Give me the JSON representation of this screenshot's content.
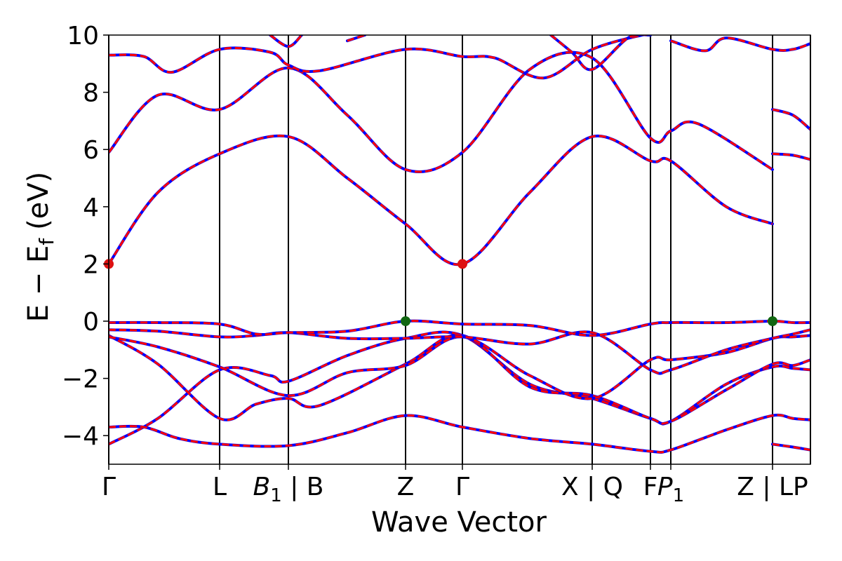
{
  "chart_data": {
    "type": "line",
    "xlabel": "Wave Vector",
    "ylabel_parts": {
      "main": "E − E",
      "sub": "f",
      "unit": "(eV)"
    },
    "ylim": [
      -5,
      10
    ],
    "yticks": [
      -4,
      -2,
      0,
      2,
      4,
      6,
      8,
      10
    ],
    "ytick_labels": [
      "−4",
      "−2",
      "0",
      "2",
      "4",
      "6",
      "8",
      "10"
    ],
    "x_range": [
      0,
      1
    ],
    "kpoints": [
      {
        "pos": 0.0,
        "label": "Γ",
        "sub": ""
      },
      {
        "pos": 0.158,
        "label": "L",
        "sub": ""
      },
      {
        "pos": 0.256,
        "label": "B",
        "sub": "1",
        "suffix": " | B"
      },
      {
        "pos": 0.423,
        "label": "Z",
        "sub": ""
      },
      {
        "pos": 0.504,
        "label": "Γ",
        "sub": ""
      },
      {
        "pos": 0.689,
        "label": "X | Q",
        "sub": ""
      },
      {
        "pos": 0.772,
        "label": "F",
        "sub": ""
      },
      {
        "pos": 0.801,
        "label": "P",
        "sub": "1"
      },
      {
        "pos": 0.946,
        "label": "Z | LP",
        "sub": ""
      },
      {
        "pos": 1.0,
        "label": "",
        "sub": ""
      }
    ],
    "line_colors": {
      "primary": "#ff0000",
      "overlay": "#0000ff"
    },
    "bands": [
      [
        [
          0,
          -4.3
        ],
        [
          0.07,
          -3.4
        ],
        [
          0.158,
          -1.7
        ],
        [
          0.23,
          -1.9
        ],
        [
          0.256,
          -2.1
        ],
        [
          0.34,
          -1.2
        ],
        [
          0.423,
          -0.6
        ],
        [
          0.504,
          -0.5
        ],
        [
          0.6,
          -2.2
        ],
        [
          0.689,
          -2.7
        ],
        [
          0.772,
          -3.4
        ],
        [
          0.801,
          -3.5
        ],
        [
          0.88,
          -2.2
        ],
        [
          0.946,
          -1.6
        ],
        [
          0.975,
          -1.65
        ],
        [
          1.0,
          -1.7
        ]
      ],
      [
        [
          0,
          -3.7
        ],
        [
          0.05,
          -3.7
        ],
        [
          0.1,
          -4.1
        ],
        [
          0.158,
          -4.3
        ],
        [
          0.256,
          -4.35
        ],
        [
          0.34,
          -3.9
        ],
        [
          0.423,
          -3.3
        ],
        [
          0.504,
          -3.7
        ],
        [
          0.6,
          -4.1
        ],
        [
          0.689,
          -4.3
        ],
        [
          0.772,
          -4.55
        ],
        [
          0.801,
          -4.5
        ],
        [
          0.88,
          -3.8
        ],
        [
          0.946,
          -3.3
        ],
        [
          0.975,
          -3.4
        ],
        [
          1.0,
          -3.45
        ]
      ],
      [
        [
          0,
          -0.5
        ],
        [
          0.07,
          -1.5
        ],
        [
          0.158,
          -3.4
        ],
        [
          0.21,
          -2.9
        ],
        [
          0.256,
          -2.7
        ],
        [
          0.3,
          -2.95
        ],
        [
          0.423,
          -1.5
        ],
        [
          0.504,
          -0.5
        ],
        [
          0.6,
          -2.3
        ],
        [
          0.689,
          -2.6
        ],
        [
          0.772,
          -3.4
        ],
        [
          0.801,
          -3.5
        ],
        [
          0.88,
          -2.4
        ],
        [
          0.946,
          -1.5
        ],
        [
          0.975,
          -1.55
        ],
        [
          1.0,
          -1.35
        ]
      ],
      [
        [
          0,
          -0.55
        ],
        [
          0.07,
          -0.9
        ],
        [
          0.158,
          -1.6
        ],
        [
          0.256,
          -2.6
        ],
        [
          0.34,
          -1.8
        ],
        [
          0.423,
          -1.55
        ],
        [
          0.504,
          -0.55
        ],
        [
          0.6,
          -1.9
        ],
        [
          0.689,
          -2.7
        ],
        [
          0.772,
          -1.35
        ],
        [
          0.801,
          -1.35
        ],
        [
          0.88,
          -1.1
        ],
        [
          0.946,
          -0.6
        ],
        [
          0.975,
          -0.55
        ],
        [
          1.0,
          -0.5
        ]
      ],
      [
        [
          0,
          -0.3
        ],
        [
          0.07,
          -0.35
        ],
        [
          0.158,
          -0.55
        ],
        [
          0.21,
          -0.5
        ],
        [
          0.256,
          -0.4
        ],
        [
          0.34,
          -0.6
        ],
        [
          0.423,
          -0.6
        ],
        [
          0.504,
          -0.55
        ],
        [
          0.6,
          -0.8
        ],
        [
          0.689,
          -0.4
        ],
        [
          0.772,
          -1.7
        ],
        [
          0.801,
          -1.7
        ],
        [
          0.88,
          -1.0
        ],
        [
          0.946,
          -0.6
        ],
        [
          0.975,
          -0.45
        ],
        [
          1.0,
          -0.3
        ]
      ],
      [
        [
          0,
          -0.05
        ],
        [
          0.07,
          -0.05
        ],
        [
          0.158,
          -0.1
        ],
        [
          0.21,
          -0.45
        ],
        [
          0.256,
          -0.4
        ],
        [
          0.34,
          -0.35
        ],
        [
          0.423,
          0.0
        ],
        [
          0.504,
          -0.1
        ],
        [
          0.6,
          -0.15
        ],
        [
          0.689,
          -0.5
        ],
        [
          0.772,
          -0.1
        ],
        [
          0.801,
          -0.05
        ],
        [
          0.88,
          -0.05
        ],
        [
          0.946,
          0.0
        ],
        [
          0.975,
          -0.05
        ],
        [
          1.0,
          -0.05
        ]
      ],
      [
        [
          0,
          2.0
        ],
        [
          0.07,
          4.5
        ],
        [
          0.158,
          5.85
        ],
        [
          0.256,
          6.45
        ],
        [
          0.34,
          5.0
        ],
        [
          0.423,
          3.4
        ],
        [
          0.504,
          2.0
        ],
        [
          0.6,
          4.5
        ],
        [
          0.689,
          6.45
        ],
        [
          0.772,
          5.6
        ],
        [
          0.801,
          5.6
        ],
        [
          0.88,
          4.0
        ],
        [
          0.946,
          3.4
        ]
      ],
      [
        [
          0,
          5.9
        ],
        [
          0.07,
          7.9
        ],
        [
          0.158,
          7.4
        ],
        [
          0.256,
          8.85
        ],
        [
          0.34,
          7.2
        ],
        [
          0.423,
          5.3
        ],
        [
          0.504,
          5.9
        ],
        [
          0.6,
          8.8
        ],
        [
          0.689,
          9.2
        ],
        [
          0.772,
          6.4
        ],
        [
          0.801,
          6.65
        ],
        [
          0.84,
          6.9
        ],
        [
          0.946,
          5.3
        ]
      ],
      [
        [
          0,
          9.3
        ],
        [
          0.05,
          9.25
        ],
        [
          0.09,
          8.7
        ],
        [
          0.158,
          9.5
        ],
        [
          0.23,
          9.4
        ],
        [
          0.256,
          8.95
        ],
        [
          0.3,
          8.75
        ],
        [
          0.423,
          9.5
        ],
        [
          0.504,
          9.25
        ],
        [
          0.55,
          9.2
        ],
        [
          0.62,
          8.5
        ],
        [
          0.689,
          9.5
        ],
        [
          0.76,
          10.0
        ],
        [
          0.772,
          10.0
        ]
      ],
      [
        [
          0.23,
          10.0
        ],
        [
          0.256,
          9.6
        ],
        [
          0.275,
          10.0
        ]
      ],
      [
        [
          0.34,
          9.8
        ],
        [
          0.365,
          10.0
        ]
      ],
      [
        [
          0.63,
          10.0
        ],
        [
          0.66,
          9.4
        ],
        [
          0.689,
          8.8
        ],
        [
          0.74,
          9.9
        ],
        [
          0.772,
          10.0
        ]
      ],
      [
        [
          0.801,
          9.8
        ],
        [
          0.85,
          9.45
        ],
        [
          0.88,
          9.9
        ],
        [
          0.946,
          9.5
        ],
        [
          0.975,
          9.5
        ],
        [
          1.0,
          9.7
        ]
      ],
      [
        [
          0.946,
          7.4
        ],
        [
          0.975,
          7.2
        ],
        [
          1.0,
          6.7
        ]
      ],
      [
        [
          0.946,
          5.85
        ],
        [
          0.975,
          5.8
        ],
        [
          1.0,
          5.65
        ]
      ],
      [
        [
          0.946,
          -4.3
        ],
        [
          0.975,
          -4.4
        ],
        [
          1.0,
          -4.5
        ]
      ]
    ],
    "markers": [
      {
        "x": 0.0,
        "y": 2.0,
        "kind": "cbm",
        "color": "#dd1111"
      },
      {
        "x": 0.504,
        "y": 2.0,
        "kind": "cbm",
        "color": "#dd1111"
      },
      {
        "x": 0.423,
        "y": 0.0,
        "kind": "vbm",
        "color": "#116611"
      },
      {
        "x": 0.946,
        "y": 0.0,
        "kind": "vbm",
        "color": "#116611"
      }
    ]
  }
}
